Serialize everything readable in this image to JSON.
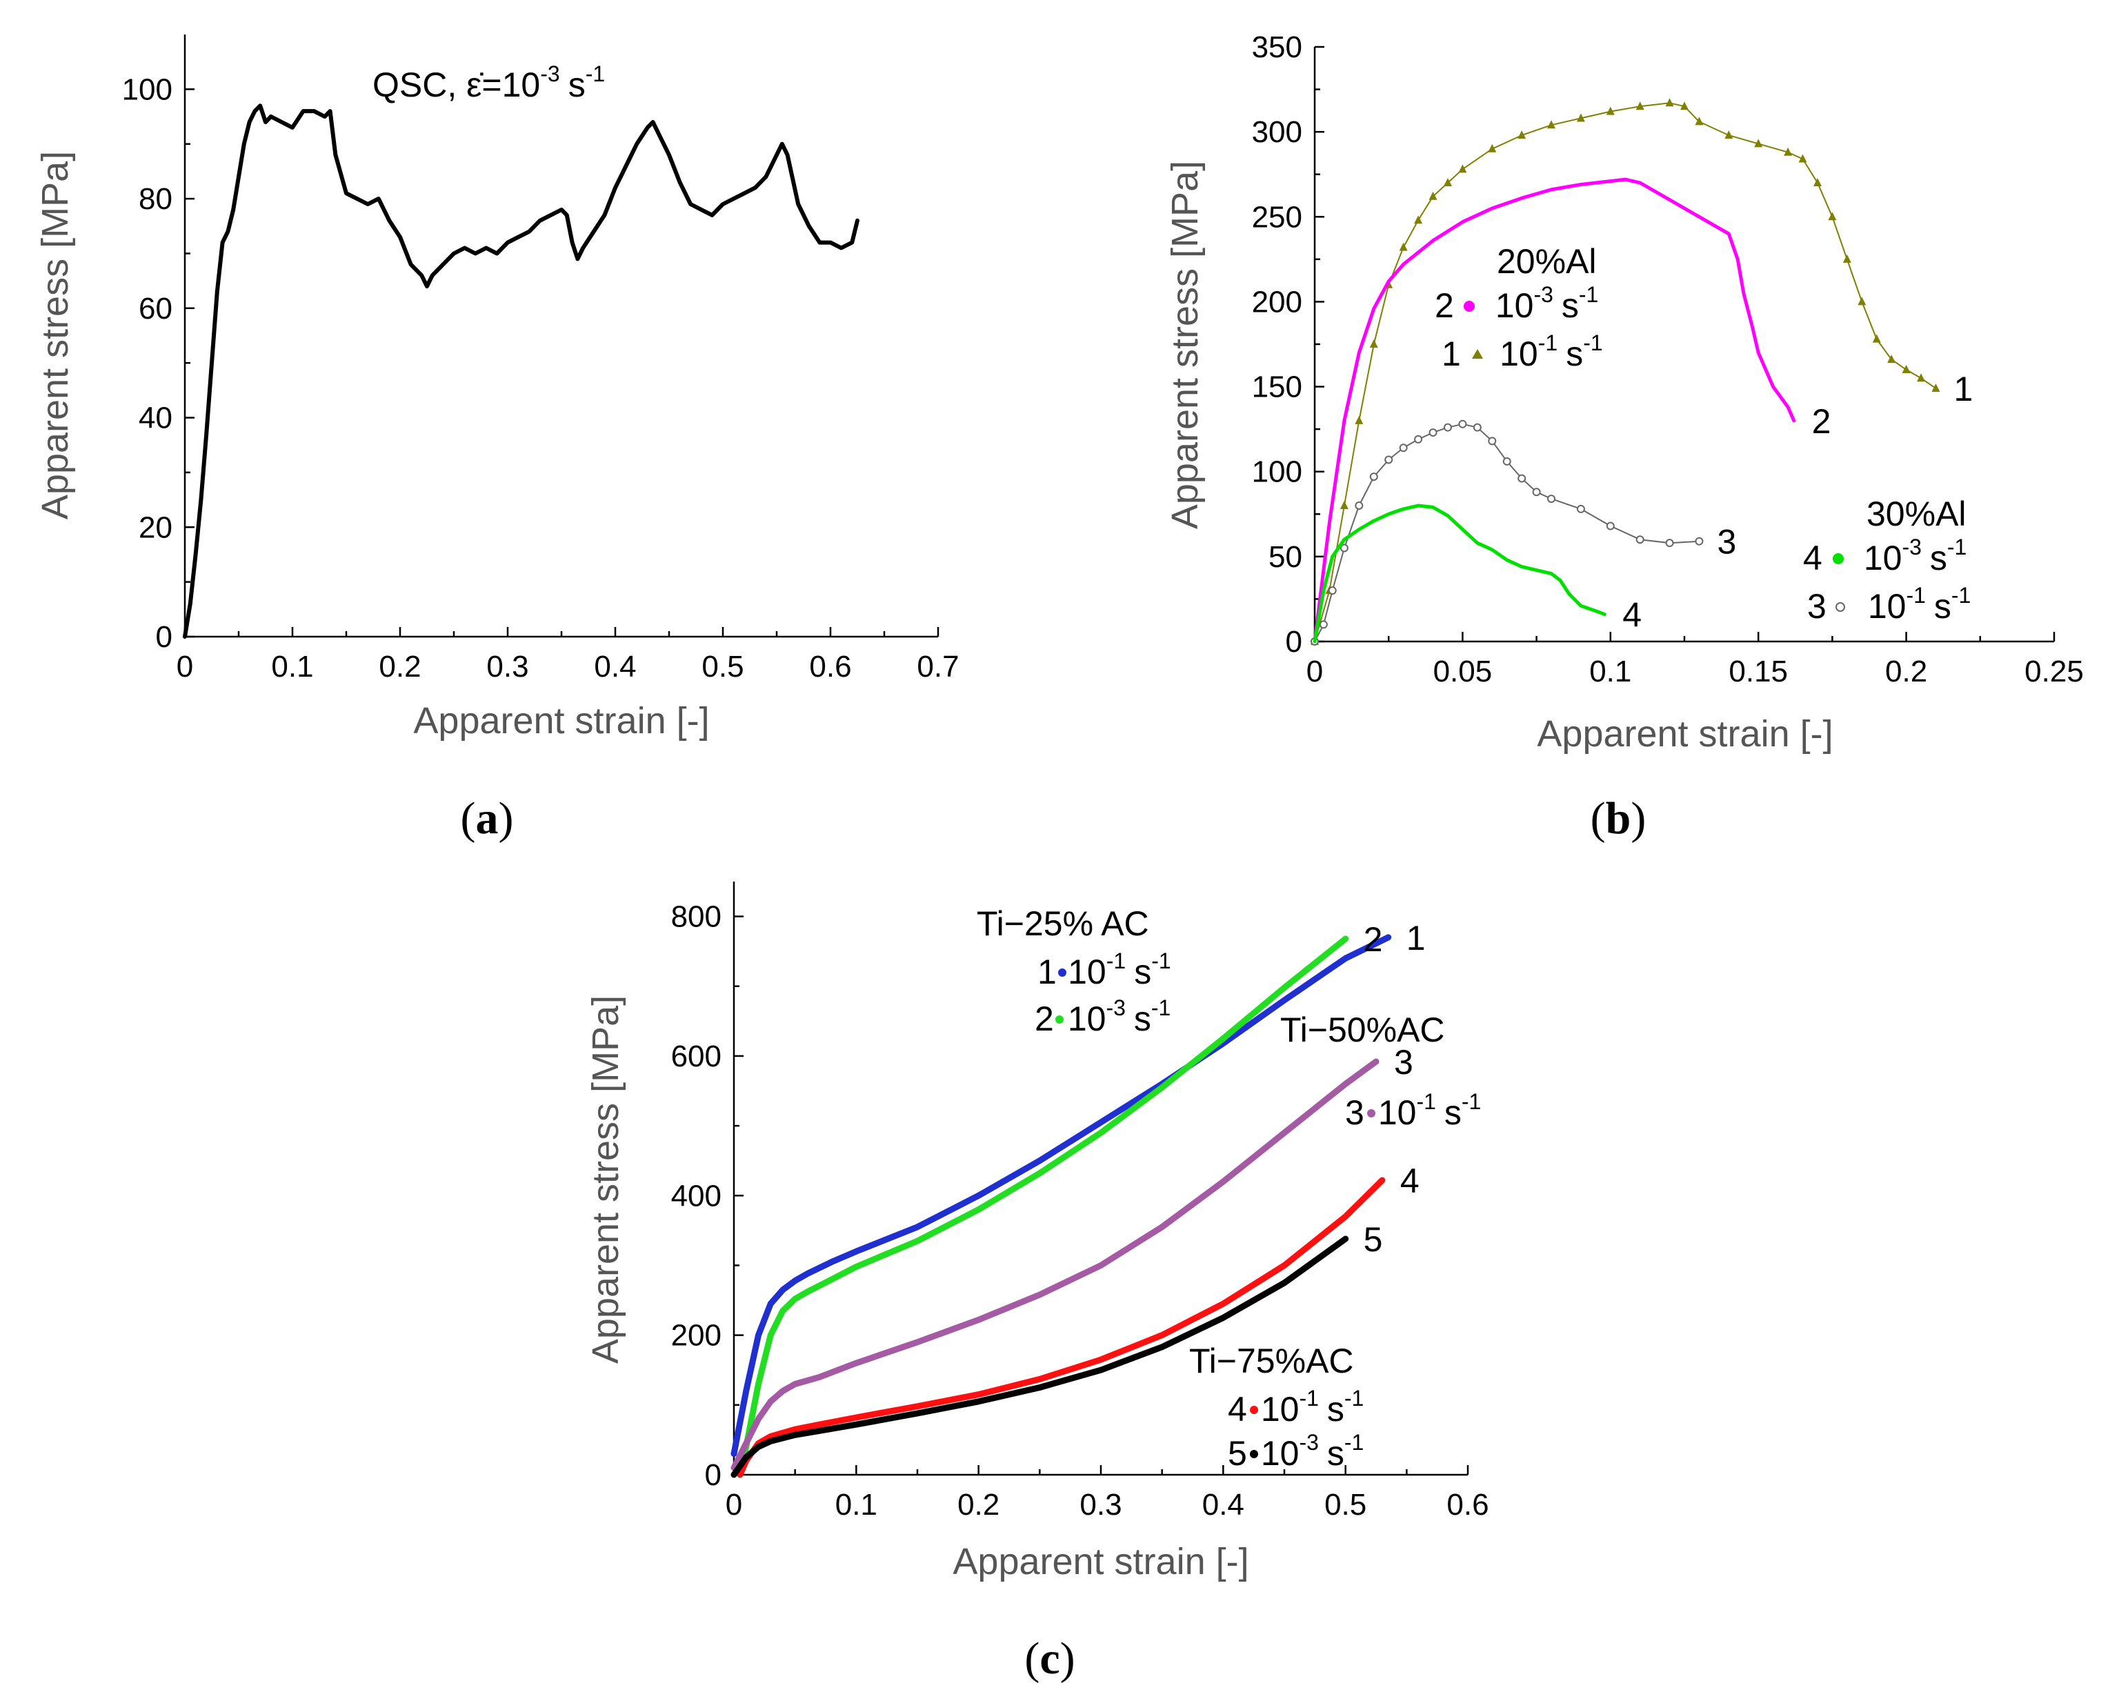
{
  "panels": {
    "a": {
      "label_open": "(",
      "label_letter": "a",
      "label_close": ")"
    },
    "b": {
      "label_open": "(",
      "label_letter": "b",
      "label_close": ")"
    },
    "c": {
      "label_open": "(",
      "label_letter": "c",
      "label_close": ")"
    }
  },
  "chart_data": [
    {
      "id": "a",
      "type": "line",
      "xlabel": "Apparent strain [-]",
      "ylabel": "Apparent stress [MPa]",
      "xlim": [
        0,
        0.7
      ],
      "ylim": [
        0,
        110
      ],
      "xticks": [
        0,
        0.1,
        0.2,
        0.3,
        0.4,
        0.5,
        0.6,
        0.7
      ],
      "xtick_labels": [
        "0",
        "0.1",
        "0.2",
        "0.3",
        "0.4",
        "0.5",
        "0.6",
        "0.7"
      ],
      "yticks": [
        0,
        20,
        40,
        60,
        80,
        100
      ],
      "ytick_labels": [
        "0",
        "20",
        "40",
        "60",
        "80",
        "100"
      ],
      "annotation": {
        "text": "QSC, ε̇=10",
        "sup": "-3",
        "unit": "s",
        "unit_sup": "-1"
      },
      "series": [
        {
          "name": "QSC",
          "color": "#000000",
          "x": [
            0,
            0.005,
            0.01,
            0.015,
            0.02,
            0.025,
            0.03,
            0.035,
            0.04,
            0.045,
            0.05,
            0.055,
            0.06,
            0.065,
            0.07,
            0.075,
            0.08,
            0.09,
            0.1,
            0.11,
            0.12,
            0.13,
            0.135,
            0.14,
            0.15,
            0.16,
            0.17,
            0.18,
            0.19,
            0.2,
            0.21,
            0.22,
            0.225,
            0.23,
            0.24,
            0.25,
            0.26,
            0.27,
            0.28,
            0.29,
            0.3,
            0.31,
            0.32,
            0.33,
            0.34,
            0.35,
            0.355,
            0.36,
            0.365,
            0.37,
            0.38,
            0.39,
            0.4,
            0.41,
            0.42,
            0.43,
            0.435,
            0.44,
            0.45,
            0.46,
            0.47,
            0.48,
            0.49,
            0.5,
            0.51,
            0.52,
            0.53,
            0.54,
            0.55,
            0.555,
            0.56,
            0.57,
            0.58,
            0.59,
            0.6,
            0.61,
            0.62,
            0.625
          ],
          "y": [
            0,
            6,
            15,
            25,
            37,
            50,
            63,
            72,
            74,
            78,
            84,
            90,
            94,
            96,
            97,
            94,
            95,
            94,
            93,
            96,
            96,
            95,
            96,
            88,
            81,
            80,
            79,
            80,
            76,
            73,
            68,
            66,
            64,
            66,
            68,
            70,
            71,
            70,
            71,
            70,
            72,
            73,
            74,
            76,
            77,
            78,
            77,
            72,
            69,
            71,
            74,
            77,
            82,
            86,
            90,
            93,
            94,
            92,
            88,
            83,
            79,
            78,
            77,
            79,
            80,
            81,
            82,
            84,
            88,
            90,
            88,
            79,
            75,
            72,
            72,
            71,
            72,
            76
          ]
        }
      ]
    },
    {
      "id": "b",
      "type": "line",
      "xlabel": "Apparent strain [-]",
      "ylabel": "Apparent stress [MPa]",
      "xlim": [
        0,
        0.25
      ],
      "ylim": [
        0,
        350
      ],
      "xticks": [
        0,
        0.05,
        0.1,
        0.15,
        0.2,
        0.25
      ],
      "xtick_labels": [
        "0",
        "0.05",
        "0.1",
        "0.15",
        "0.2",
        "0.25"
      ],
      "yticks": [
        0,
        50,
        100,
        150,
        200,
        250,
        300,
        350
      ],
      "ytick_labels": [
        "0",
        "50",
        "100",
        "150",
        "200",
        "250",
        "300",
        "350"
      ],
      "annotations": {
        "group1_title": "20%Al",
        "g1_l1_num": "2",
        "g1_l1_rate": "10",
        "g1_l1_sup": "-3",
        "g1_l1_unit": "s",
        "g1_l1_unit_sup": "-1",
        "g1_l2_num": "1",
        "g1_l2_rate": "10",
        "g1_l2_sup": "-1",
        "g1_l2_unit": "s",
        "g1_l2_unit_sup": "-1",
        "group2_title": "30%Al",
        "g2_l1_num": "4",
        "g2_l1_rate": "10",
        "g2_l1_sup": "-3",
        "g2_l1_unit": "s",
        "g2_l1_unit_sup": "-1",
        "g2_l2_num": "3",
        "g2_l2_rate": "10",
        "g2_l2_sup": "-1",
        "g2_l2_unit": "s",
        "g2_l2_unit_sup": "-1"
      },
      "series": [
        {
          "name": "1",
          "label": "1",
          "group": "20%Al",
          "rate": "10^-1 s^-1",
          "color": "#808000",
          "marker": "triangle",
          "x": [
            0,
            0.005,
            0.01,
            0.015,
            0.02,
            0.025,
            0.03,
            0.035,
            0.04,
            0.045,
            0.05,
            0.06,
            0.07,
            0.08,
            0.09,
            0.1,
            0.11,
            0.12,
            0.125,
            0.13,
            0.14,
            0.15,
            0.16,
            0.165,
            0.17,
            0.175,
            0.18,
            0.185,
            0.19,
            0.195,
            0.2,
            0.205,
            0.21
          ],
          "y": [
            0,
            30,
            80,
            130,
            175,
            210,
            232,
            248,
            262,
            270,
            278,
            290,
            298,
            304,
            308,
            312,
            315,
            317,
            315,
            306,
            298,
            293,
            288,
            284,
            270,
            250,
            225,
            200,
            178,
            166,
            160,
            155,
            149
          ]
        },
        {
          "name": "2",
          "label": "2",
          "group": "20%Al",
          "rate": "10^-3 s^-1",
          "color": "#ff00ff",
          "marker": "circle",
          "x": [
            0,
            0.005,
            0.01,
            0.015,
            0.02,
            0.025,
            0.03,
            0.04,
            0.05,
            0.06,
            0.07,
            0.08,
            0.09,
            0.1,
            0.105,
            0.11,
            0.12,
            0.13,
            0.14,
            0.143,
            0.145,
            0.148,
            0.15,
            0.155,
            0.16,
            0.162
          ],
          "y": [
            0,
            70,
            130,
            170,
            196,
            212,
            222,
            236,
            247,
            255,
            261,
            266,
            269,
            271,
            272,
            270,
            260,
            250,
            240,
            225,
            205,
            185,
            170,
            150,
            138,
            130
          ]
        },
        {
          "name": "3",
          "label": "3",
          "group": "30%Al",
          "rate": "10^-1 s^-1",
          "color": "#666666",
          "marker": "open-circle",
          "x": [
            0,
            0.003,
            0.006,
            0.01,
            0.015,
            0.02,
            0.025,
            0.03,
            0.035,
            0.04,
            0.045,
            0.05,
            0.055,
            0.06,
            0.065,
            0.07,
            0.075,
            0.08,
            0.09,
            0.1,
            0.11,
            0.12,
            0.13
          ],
          "y": [
            0,
            10,
            30,
            55,
            80,
            97,
            107,
            114,
            119,
            123,
            126,
            128,
            126,
            118,
            106,
            96,
            88,
            84,
            78,
            68,
            60,
            58,
            59
          ]
        },
        {
          "name": "4",
          "label": "4",
          "group": "30%Al",
          "rate": "10^-3 s^-1",
          "color": "#00e000",
          "marker": "circle",
          "x": [
            0,
            0.003,
            0.006,
            0.01,
            0.015,
            0.02,
            0.025,
            0.03,
            0.035,
            0.04,
            0.045,
            0.05,
            0.055,
            0.06,
            0.065,
            0.07,
            0.075,
            0.08,
            0.083,
            0.086,
            0.09,
            0.095,
            0.098
          ],
          "y": [
            0,
            30,
            50,
            60,
            66,
            71,
            75,
            78,
            80,
            79,
            74,
            66,
            58,
            54,
            48,
            44,
            42,
            40,
            36,
            28,
            21,
            18,
            16
          ]
        }
      ]
    },
    {
      "id": "c",
      "type": "line",
      "xlabel": "Apparent strain [-]",
      "ylabel": "Apparent stress [MPa]",
      "xlim": [
        0,
        0.6
      ],
      "ylim": [
        0,
        850
      ],
      "xticks": [
        0,
        0.1,
        0.2,
        0.3,
        0.4,
        0.5,
        0.6
      ],
      "xtick_labels": [
        "0",
        "0.1",
        "0.2",
        "0.3",
        "0.4",
        "0.5",
        "0.6"
      ],
      "yticks": [
        0,
        200,
        400,
        600,
        800
      ],
      "ytick_labels": [
        "0",
        "200",
        "400",
        "600",
        "800"
      ],
      "annotations": {
        "g1_title": "Ti−25% AC",
        "g1_l1_num": "1",
        "g1_l1_rate": "10",
        "g1_l1_sup": "-1",
        "g1_l1_unit": "s",
        "g1_l1_unit_sup": "-1",
        "g1_l2_num": "2",
        "g1_l2_rate": "10",
        "g1_l2_sup": "-3",
        "g1_l2_unit": "s",
        "g1_l2_unit_sup": "-1",
        "g2_title": "Ti−50%AC",
        "g2_l1_num": "3",
        "g2_l1_rate": "10",
        "g2_l1_sup": "-1",
        "g2_l1_unit": "s",
        "g2_l1_unit_sup": "-1",
        "g3_title": "Ti−75%AC",
        "g3_l1_num": "4",
        "g3_l1_rate": "10",
        "g3_l1_sup": "-1",
        "g3_l1_unit": "s",
        "g3_l1_unit_sup": "-1",
        "g3_l2_num": "5",
        "g3_l2_rate": "10",
        "g3_l2_sup": "-3",
        "g3_l2_unit": "s",
        "g3_l2_unit_sup": "-1"
      },
      "series": [
        {
          "name": "1",
          "label": "1",
          "group": "Ti−25% AC",
          "rate": "10^-1 s^-1",
          "color": "#1f2fd0",
          "x": [
            0,
            0.01,
            0.02,
            0.03,
            0.04,
            0.05,
            0.06,
            0.08,
            0.1,
            0.15,
            0.2,
            0.25,
            0.3,
            0.35,
            0.4,
            0.45,
            0.5,
            0.535
          ],
          "y": [
            30,
            120,
            200,
            245,
            265,
            278,
            288,
            305,
            320,
            355,
            400,
            450,
            505,
            560,
            618,
            680,
            740,
            770
          ]
        },
        {
          "name": "2",
          "label": "2",
          "group": "Ti−25% AC",
          "rate": "10^-3 s^-1",
          "color": "#22dd22",
          "x": [
            0.005,
            0.01,
            0.02,
            0.03,
            0.04,
            0.05,
            0.06,
            0.08,
            0.1,
            0.15,
            0.2,
            0.25,
            0.3,
            0.35,
            0.4,
            0.45,
            0.5
          ],
          "y": [
            0,
            40,
            130,
            200,
            235,
            252,
            262,
            280,
            298,
            335,
            380,
            432,
            490,
            555,
            625,
            698,
            768
          ]
        },
        {
          "name": "3",
          "label": "3",
          "group": "Ti−50%AC",
          "rate": "10^-1 s^-1",
          "color": "#a45ba4",
          "x": [
            0,
            0.01,
            0.02,
            0.03,
            0.04,
            0.05,
            0.07,
            0.1,
            0.15,
            0.2,
            0.25,
            0.3,
            0.35,
            0.4,
            0.45,
            0.5,
            0.525
          ],
          "y": [
            10,
            45,
            80,
            105,
            120,
            130,
            140,
            160,
            190,
            222,
            258,
            300,
            355,
            420,
            490,
            560,
            592
          ]
        },
        {
          "name": "4",
          "label": "4",
          "group": "Ti−75%AC",
          "rate": "10^-1 s^-1",
          "color": "#ff1010",
          "x": [
            0.005,
            0.01,
            0.02,
            0.03,
            0.05,
            0.07,
            0.1,
            0.15,
            0.2,
            0.25,
            0.3,
            0.35,
            0.4,
            0.45,
            0.5,
            0.53
          ],
          "y": [
            0,
            20,
            45,
            55,
            65,
            72,
            82,
            98,
            115,
            137,
            165,
            200,
            245,
            300,
            370,
            422
          ]
        },
        {
          "name": "5",
          "label": "5",
          "group": "Ti−75%AC",
          "rate": "10^-3 s^-1",
          "color": "#000000",
          "x": [
            0,
            0.01,
            0.02,
            0.03,
            0.05,
            0.07,
            0.1,
            0.15,
            0.2,
            0.25,
            0.3,
            0.35,
            0.4,
            0.45,
            0.5
          ],
          "y": [
            0,
            25,
            40,
            48,
            57,
            63,
            72,
            88,
            105,
            125,
            150,
            183,
            225,
            275,
            338
          ]
        }
      ]
    }
  ]
}
